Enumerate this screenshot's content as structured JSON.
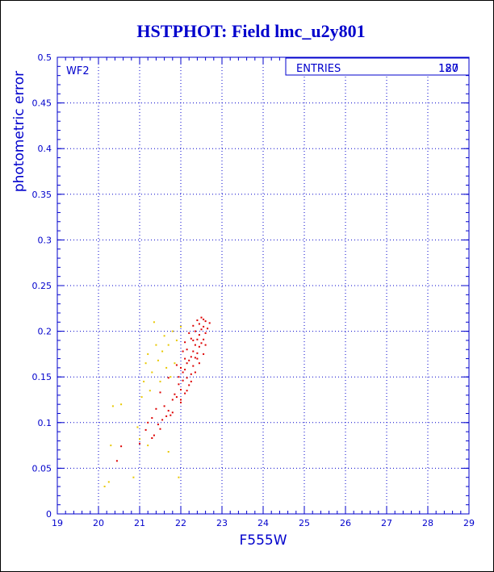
{
  "chart_data": {
    "type": "scatter",
    "title": "HSTPHOT: Field lmc_u2y801",
    "xlabel": "F555W",
    "ylabel": "photometric error",
    "panel_label": "WF2",
    "stats_box": {
      "label": "ENTRIES",
      "values": [
        "187",
        "120"
      ]
    },
    "xlim": [
      19,
      29
    ],
    "ylim": [
      0,
      0.5
    ],
    "x_ticks": [
      "19",
      "20",
      "21",
      "22",
      "23",
      "24",
      "25",
      "26",
      "27",
      "28",
      "29"
    ],
    "y_ticks": [
      "0",
      "0.05",
      "0.1",
      "0.15",
      "0.2",
      "0.25",
      "0.3",
      "0.35",
      "0.4",
      "0.45",
      "0.5"
    ],
    "grid": true,
    "colors": {
      "frame": "#0000cc",
      "series_red": "#dd0000",
      "series_yellow": "#e8c800"
    },
    "series": [
      {
        "color": "#dd0000",
        "points": [
          [
            20.45,
            0.058
          ],
          [
            20.55,
            0.074
          ],
          [
            21.0,
            0.077
          ],
          [
            21.15,
            0.092
          ],
          [
            21.3,
            0.083
          ],
          [
            21.35,
            0.086
          ],
          [
            21.45,
            0.098
          ],
          [
            21.5,
            0.093
          ],
          [
            21.55,
            0.103
          ],
          [
            21.6,
            0.118
          ],
          [
            21.65,
            0.107
          ],
          [
            21.7,
            0.113
          ],
          [
            21.75,
            0.108
          ],
          [
            21.8,
            0.111
          ],
          [
            21.8,
            0.125
          ],
          [
            21.85,
            0.131
          ],
          [
            21.9,
            0.128
          ],
          [
            21.95,
            0.142
          ],
          [
            22.0,
            0.122
          ],
          [
            22.0,
            0.136
          ],
          [
            22.05,
            0.146
          ],
          [
            22.05,
            0.155
          ],
          [
            22.1,
            0.132
          ],
          [
            22.1,
            0.158
          ],
          [
            22.15,
            0.149
          ],
          [
            22.15,
            0.165
          ],
          [
            22.2,
            0.141
          ],
          [
            22.2,
            0.168
          ],
          [
            22.25,
            0.153
          ],
          [
            22.25,
            0.172
          ],
          [
            22.3,
            0.162
          ],
          [
            22.3,
            0.178
          ],
          [
            22.35,
            0.171
          ],
          [
            22.35,
            0.185
          ],
          [
            22.4,
            0.176
          ],
          [
            22.4,
            0.191
          ],
          [
            22.45,
            0.183
          ],
          [
            22.45,
            0.196
          ],
          [
            22.5,
            0.187
          ],
          [
            22.5,
            0.202
          ],
          [
            22.55,
            0.191
          ],
          [
            22.55,
            0.205
          ],
          [
            22.6,
            0.198
          ],
          [
            22.6,
            0.211
          ],
          [
            22.65,
            0.203
          ],
          [
            22.7,
            0.209
          ],
          [
            22.5,
            0.215
          ],
          [
            22.4,
            0.212
          ],
          [
            22.3,
            0.206
          ],
          [
            22.2,
            0.198
          ],
          [
            22.1,
            0.188
          ],
          [
            22.05,
            0.178
          ],
          [
            21.9,
            0.163
          ],
          [
            21.7,
            0.149
          ],
          [
            21.5,
            0.133
          ],
          [
            22.0,
            0.125
          ],
          [
            22.15,
            0.135
          ],
          [
            22.25,
            0.145
          ],
          [
            22.35,
            0.155
          ],
          [
            22.45,
            0.165
          ],
          [
            22.55,
            0.175
          ],
          [
            22.6,
            0.185
          ],
          [
            22.35,
            0.2
          ],
          [
            22.25,
            0.192
          ],
          [
            22.15,
            0.18
          ],
          [
            22.1,
            0.17
          ],
          [
            22.0,
            0.16
          ],
          [
            21.95,
            0.15
          ],
          [
            22.45,
            0.208
          ],
          [
            22.55,
            0.213
          ],
          [
            21.3,
            0.105
          ],
          [
            21.4,
            0.115
          ],
          [
            21.2,
            0.1
          ],
          [
            22.4,
            0.17
          ],
          [
            22.3,
            0.19
          ]
        ]
      },
      {
        "color": "#e8c800",
        "points": [
          [
            20.15,
            0.03
          ],
          [
            20.25,
            0.035
          ],
          [
            20.3,
            0.075
          ],
          [
            20.35,
            0.118
          ],
          [
            20.55,
            0.12
          ],
          [
            20.85,
            0.04
          ],
          [
            20.95,
            0.095
          ],
          [
            21.05,
            0.128
          ],
          [
            21.1,
            0.145
          ],
          [
            21.15,
            0.165
          ],
          [
            21.2,
            0.175
          ],
          [
            21.25,
            0.135
          ],
          [
            21.3,
            0.155
          ],
          [
            21.35,
            0.21
          ],
          [
            21.4,
            0.185
          ],
          [
            21.45,
            0.168
          ],
          [
            21.5,
            0.145
          ],
          [
            21.55,
            0.178
          ],
          [
            21.6,
            0.195
          ],
          [
            21.65,
            0.16
          ],
          [
            21.7,
            0.185
          ],
          [
            21.75,
            0.15
          ],
          [
            21.8,
            0.2
          ],
          [
            21.85,
            0.165
          ],
          [
            21.9,
            0.19
          ],
          [
            21.95,
            0.04
          ],
          [
            21.7,
            0.068
          ],
          [
            21.2,
            0.075
          ],
          [
            21.0,
            0.082
          ],
          [
            22.0,
            0.205
          ]
        ]
      }
    ]
  }
}
